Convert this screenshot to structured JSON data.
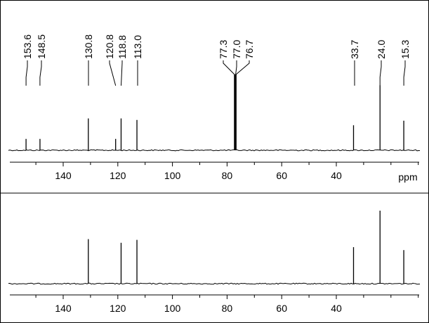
{
  "chart_data": [
    {
      "type": "line",
      "subtype": "13C NMR spectrum",
      "xlabel": "ppm",
      "x_axis": {
        "ticks": [
          140,
          120,
          100,
          80,
          60,
          40
        ],
        "xlim": [
          158,
          7
        ],
        "reversed": true
      },
      "baseline_noise": true,
      "peaks": [
        {
          "ppm": 153.6,
          "label": "153.6",
          "height": 0.15
        },
        {
          "ppm": 148.5,
          "label": "148.5",
          "height": 0.15
        },
        {
          "ppm": 130.8,
          "label": "130.8",
          "height": 0.42
        },
        {
          "ppm": 120.8,
          "label": "120.8",
          "height": 0.15
        },
        {
          "ppm": 118.8,
          "label": "118.8",
          "height": 0.42
        },
        {
          "ppm": 113.0,
          "label": "113.0",
          "height": 0.4
        },
        {
          "ppm": 77.3,
          "label": "77.3",
          "height": 1.0
        },
        {
          "ppm": 77.0,
          "label": "77.0",
          "height": 1.0
        },
        {
          "ppm": 76.7,
          "label": "76.7",
          "height": 1.0
        },
        {
          "ppm": 33.7,
          "label": "33.7",
          "height": 0.33
        },
        {
          "ppm": 24.0,
          "label": "24.0",
          "height": 0.86
        },
        {
          "ppm": 15.3,
          "label": "15.3",
          "height": 0.39
        }
      ]
    },
    {
      "type": "line",
      "subtype": "13C NMR spectrum",
      "xlabel": "",
      "x_axis": {
        "ticks": [
          140,
          120,
          100,
          80,
          60,
          40
        ],
        "xlim": [
          158,
          7
        ],
        "reversed": true
      },
      "baseline_noise": true,
      "peaks": [
        {
          "ppm": 130.8,
          "height": 0.61
        },
        {
          "ppm": 118.8,
          "height": 0.56
        },
        {
          "ppm": 113.0,
          "height": 0.6
        },
        {
          "ppm": 33.7,
          "height": 0.5
        },
        {
          "ppm": 24.0,
          "height": 1.0
        },
        {
          "ppm": 15.3,
          "height": 0.46
        }
      ]
    }
  ]
}
